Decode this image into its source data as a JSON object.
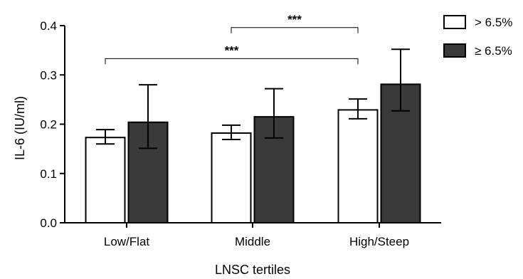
{
  "chart_data": {
    "type": "bar",
    "title": "",
    "xlabel": "LNSC tertiles",
    "ylabel": "IL-6 (IU/ml)",
    "ylim": [
      0,
      0.4
    ],
    "yticks": [
      "0.0",
      "0.1",
      "0.2",
      "0.3",
      "0.4"
    ],
    "categories": [
      "Low/Flat",
      "Middle",
      "High/Steep"
    ],
    "grid": false,
    "legend_position": "top-right",
    "series": [
      {
        "name": "> 6.5%",
        "color": "#ffffff",
        "values": [
          0.173,
          0.182,
          0.229
        ],
        "error_low": [
          0.16,
          0.169,
          0.211
        ],
        "error_high": [
          0.189,
          0.198,
          0.251
        ]
      },
      {
        "name": "≥ 6.5%",
        "color": "#3a3a3a",
        "values": [
          0.204,
          0.215,
          0.281
        ],
        "error_low": [
          0.151,
          0.172,
          0.227
        ],
        "error_high": [
          0.28,
          0.272,
          0.352
        ]
      }
    ],
    "annotations": [
      {
        "label": "***",
        "from": "Low/Flat",
        "to": "High/Steep",
        "y": 0.333
      },
      {
        "label": "***",
        "from": "Middle",
        "to": "High/Steep",
        "y": 0.396
      }
    ]
  }
}
